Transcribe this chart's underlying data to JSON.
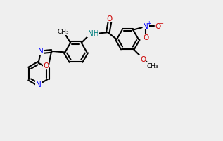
{
  "smiles": "COc1ccc(C(=O)Nc2cccc(-c3nc4ncccc4o3)c2C)cc1[N+](=O)[O-]",
  "bg_color": "#efefef",
  "black": "#000000",
  "blue": "#0000ff",
  "red": "#cc0000",
  "teal": "#008080",
  "img_size": [
    300,
    300
  ]
}
